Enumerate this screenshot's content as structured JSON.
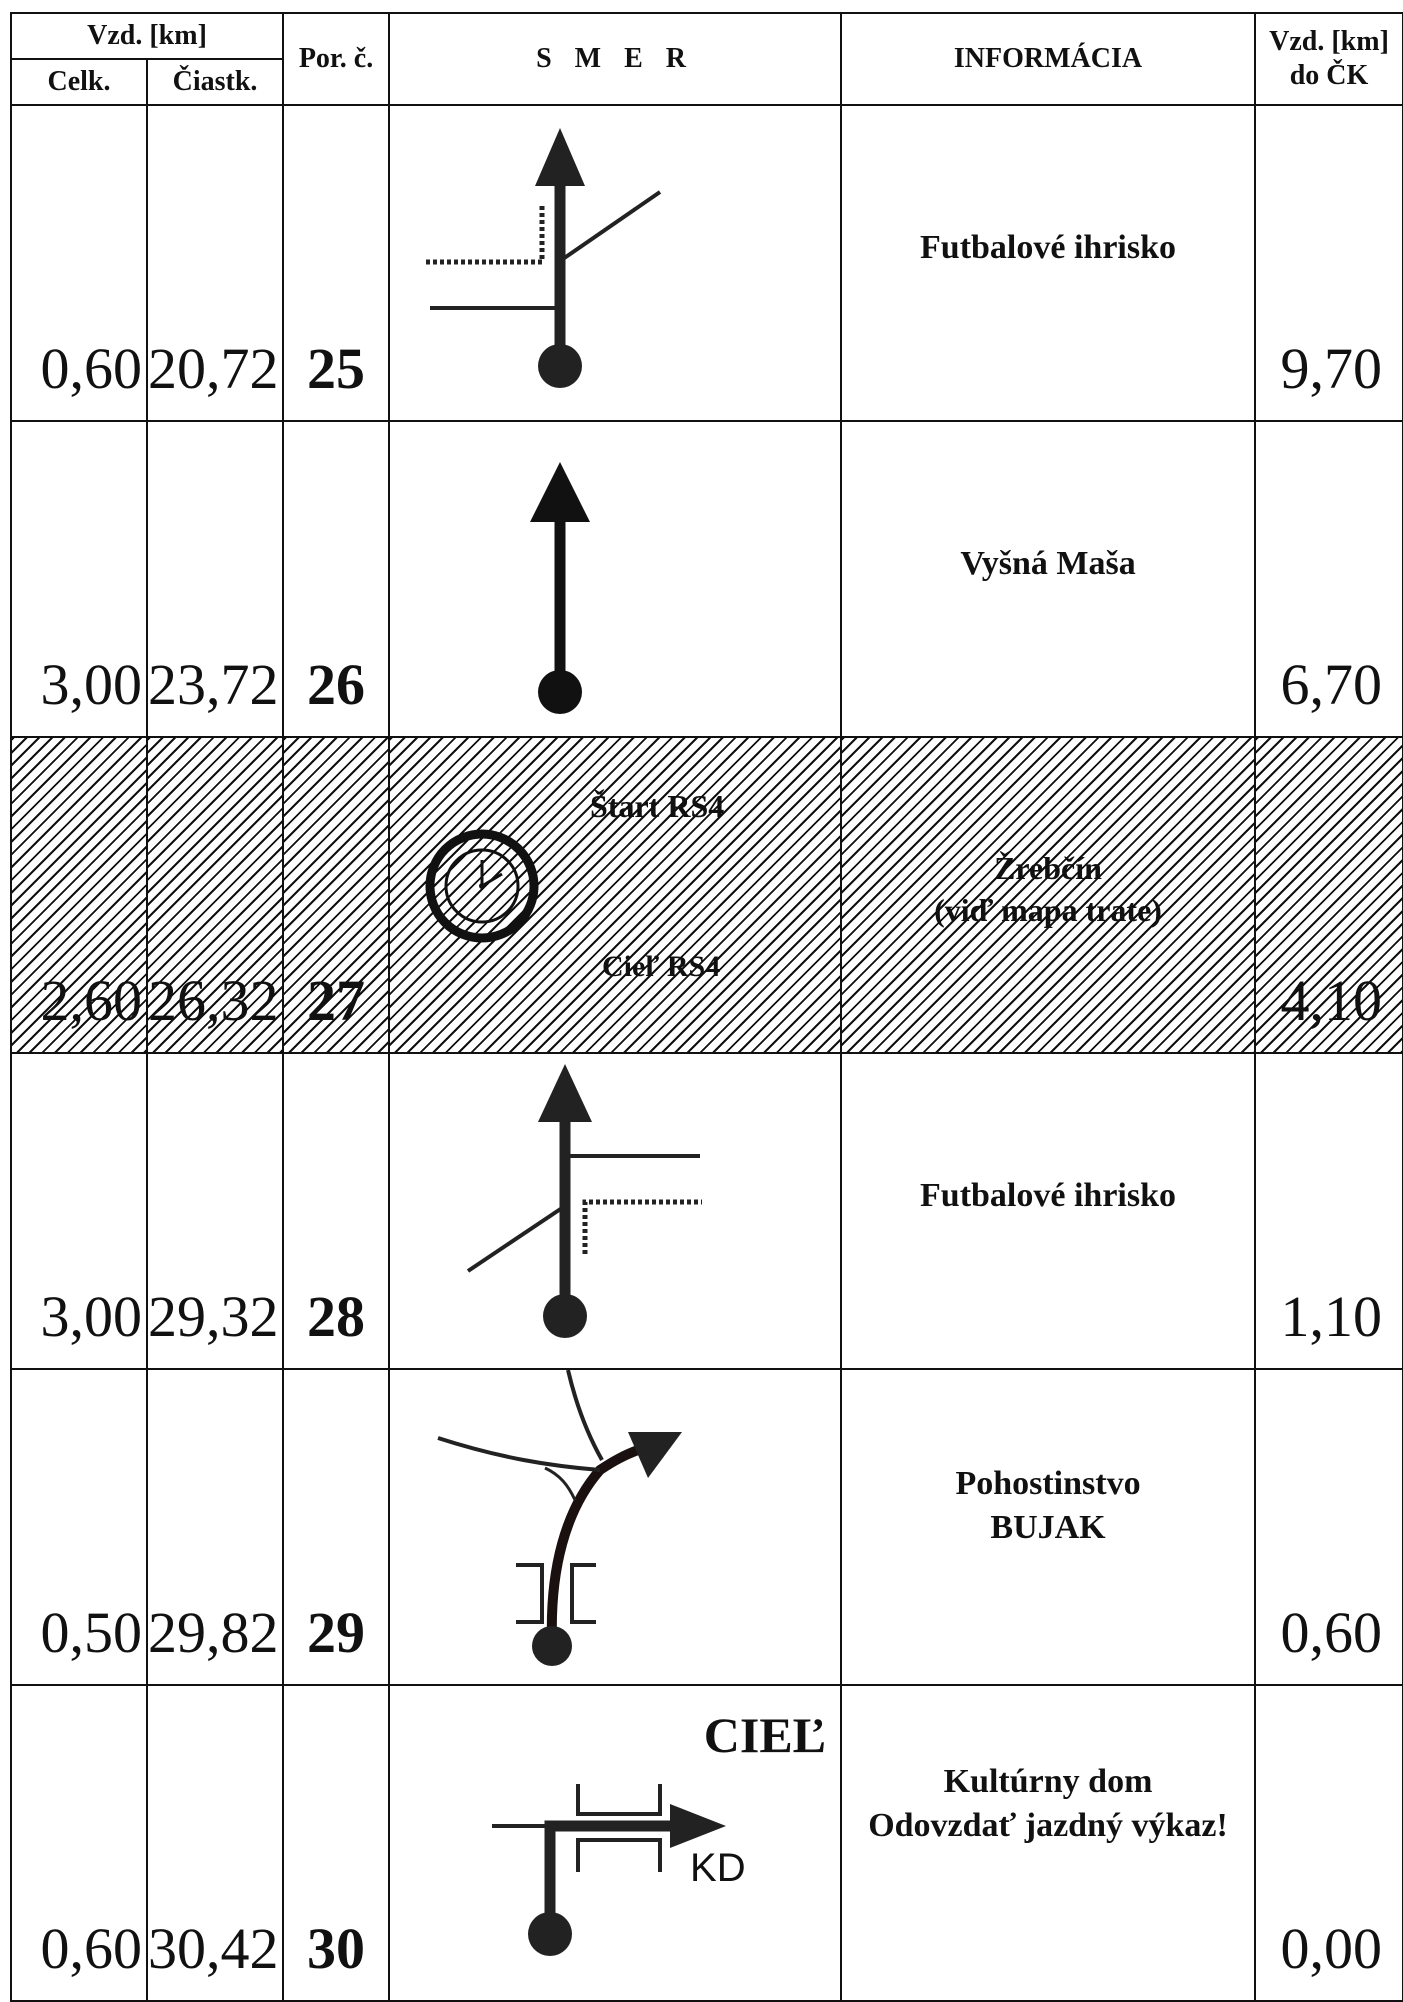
{
  "header": {
    "vzd_km": "Vzd. [km]",
    "celk": "Celk.",
    "ciastk": "Čiastk.",
    "por": "Por. č.",
    "smer": "S M E R",
    "informacia": "INFORMÁCIA",
    "vzd_ck_line1": "Vzd. [km]",
    "vzd_ck_line2": "do ČK"
  },
  "rows": [
    {
      "celk": "0,60",
      "ciastk": "20,72",
      "por": "25",
      "info": "Futbalové ihrisko",
      "info2": "",
      "ck": "9,70"
    },
    {
      "celk": "3,00",
      "ciastk": "23,72",
      "por": "26",
      "info": "Vyšná Maša",
      "info2": "",
      "ck": "6,70"
    },
    {
      "celk": "2,60",
      "ciastk": "26,32",
      "por": "27",
      "info": "Žrebčín",
      "info2": "(viď mapa trate)",
      "ck": "4,10",
      "start": "Štart RS4",
      "ciel": "Cieľ RS4"
    },
    {
      "celk": "3,00",
      "ciastk": "29,32",
      "por": "28",
      "info": "Futbalové ihrisko",
      "info2": "",
      "ck": "1,10"
    },
    {
      "celk": "0,50",
      "ciastk": "29,82",
      "por": "29",
      "info": "Pohostinstvo",
      "info2": "BUJAK",
      "ck": "0,60"
    },
    {
      "celk": "0,60",
      "ciastk": "30,42",
      "por": "30",
      "info": "Kultúrny dom",
      "info2": "Odovzdať jazdný výkaz!",
      "ck": "0,00",
      "ciel_big": "CIEĽ",
      "kd": "KD"
    }
  ]
}
